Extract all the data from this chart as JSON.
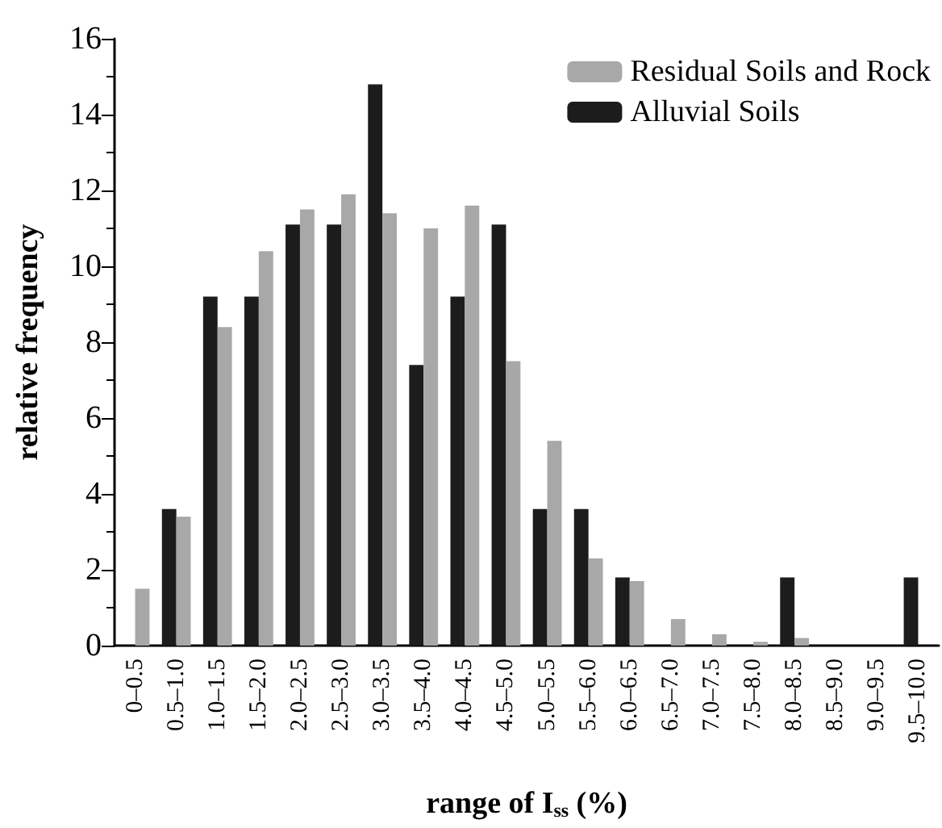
{
  "chart_data": {
    "type": "bar",
    "xlabel": "range of I$_{ss}$ (%)",
    "ylabel": "relative frequency",
    "categories": [
      "0–0.5",
      "0.5–1.0",
      "1.0–1.5",
      "1.5–2.0",
      "2.0–2.5",
      "2.5–3.0",
      "3.0–3.5",
      "3.5–4.0",
      "4.0–4.5",
      "4.5–5.0",
      "5.0–5.5",
      "5.5–6.0",
      "6.0–6.5",
      "6.5–7.0",
      "7.0–7.5",
      "7.5–8.0",
      "8.0–8.5",
      "8.5–9.0",
      "9.0–9.5",
      "9.5–10.0"
    ],
    "series": [
      {
        "name": "Alluvial Soils",
        "color": "#1c1c1c",
        "values": [
          0,
          3.6,
          9.2,
          9.2,
          11.1,
          11.1,
          14.8,
          7.4,
          9.2,
          11.1,
          3.6,
          3.6,
          1.8,
          0,
          0,
          0,
          1.8,
          0,
          0,
          1.8
        ]
      },
      {
        "name": "Residual Soils and Rock",
        "color": "#a8a8a8",
        "values": [
          1.5,
          3.4,
          8.4,
          10.4,
          11.5,
          11.9,
          11.4,
          11.0,
          11.6,
          7.5,
          5.4,
          2.3,
          1.7,
          0.7,
          0.3,
          0.1,
          0.2,
          0,
          0,
          0
        ]
      }
    ],
    "ylim": [
      0,
      16
    ],
    "yticks": [
      0,
      2,
      4,
      6,
      8,
      10,
      12,
      14,
      16
    ],
    "grid": false,
    "legend": "top right"
  }
}
